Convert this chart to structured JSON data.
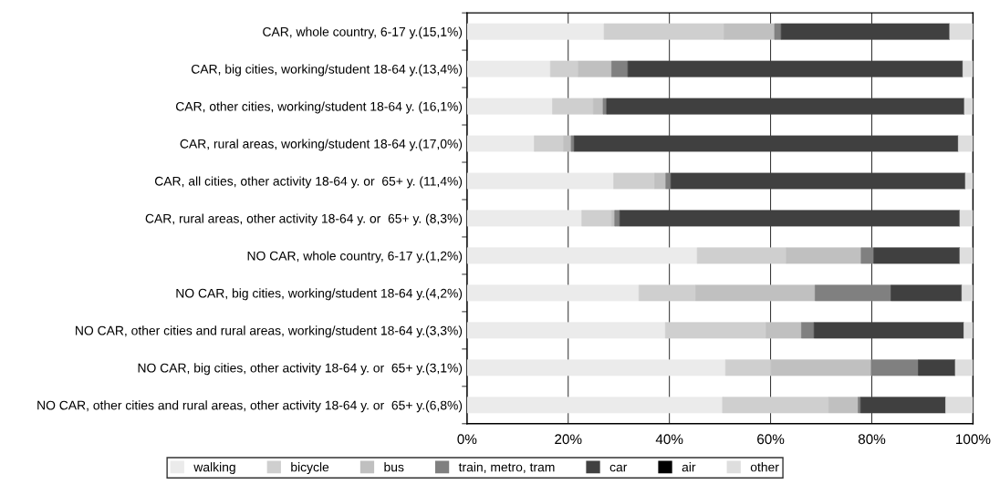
{
  "chart_data": {
    "type": "bar",
    "orientation": "horizontal",
    "stacked": true,
    "categories": [
      "CAR, whole country, 6-17 y.(15,1%)",
      "CAR, big cities, working/student 18-64 y.(13,4%)",
      "CAR, other cities, working/student 18-64 y. (16,1%)",
      "CAR, rural areas, working/student 18-64 y.(17,0%)",
      "CAR, all cities, other activity 18-64 y. or  65+ y. (11,4%)",
      "CAR, rural areas, other activity 18-64 y. or  65+ y. (8,3%)",
      "NO CAR, whole country, 6-17 y.(1,2%)",
      "NO CAR, big cities, working/student 18-64 y.(4,2%)",
      "NO CAR, other cities and rural areas, working/student 18-64 y.(3,3%)",
      "NO CAR, big cities, other activity 18-64 y. or  65+ y.(3,1%)",
      "NO CAR, other cities and rural areas, other activity 18-64 y. or  65+ y.(6,8%)"
    ],
    "series": [
      {
        "name": "walking",
        "color": "#ebebeb",
        "values": [
          27.1,
          16.5,
          16.9,
          13.3,
          29.0,
          22.7,
          45.5,
          34.0,
          39.2,
          51.1,
          50.5
        ]
      },
      {
        "name": "bicycle",
        "color": "#cfcfcf",
        "values": [
          23.7,
          5.5,
          8.1,
          5.8,
          8.1,
          5.9,
          17.6,
          11.2,
          19.9,
          9.0,
          21.0
        ]
      },
      {
        "name": "bus",
        "color": "#c0c0c0",
        "values": [
          10.0,
          6.6,
          1.9,
          1.5,
          2.2,
          0.6,
          14.8,
          23.6,
          7.0,
          19.8,
          5.8
        ]
      },
      {
        "name": "train, metro, tram",
        "color": "#808080",
        "values": [
          1.3,
          3.2,
          0.7,
          0.6,
          1.0,
          1.0,
          2.5,
          15.0,
          2.5,
          9.3,
          0.5
        ]
      },
      {
        "name": "car",
        "color": "#404040",
        "values": [
          33.3,
          66.2,
          70.7,
          75.9,
          58.2,
          67.2,
          17.0,
          14.0,
          29.6,
          7.3,
          16.8
        ]
      },
      {
        "name": "air",
        "color": "#000000",
        "values": [
          0,
          0,
          0,
          0,
          0,
          0,
          0,
          0,
          0,
          0,
          0
        ]
      },
      {
        "name": "other",
        "color": "#dedede",
        "values": [
          4.6,
          2.0,
          1.7,
          2.9,
          1.5,
          2.6,
          2.6,
          2.2,
          1.8,
          3.5,
          5.4
        ]
      }
    ],
    "xlim": [
      0,
      100
    ],
    "xticks": [
      {
        "value": 0,
        "label": "0%"
      },
      {
        "value": 20,
        "label": "20%"
      },
      {
        "value": 40,
        "label": "40%"
      },
      {
        "value": 60,
        "label": "60%"
      },
      {
        "value": 80,
        "label": "80%"
      },
      {
        "value": 100,
        "label": "100%"
      }
    ],
    "grid": "x",
    "legend": "bottom"
  }
}
